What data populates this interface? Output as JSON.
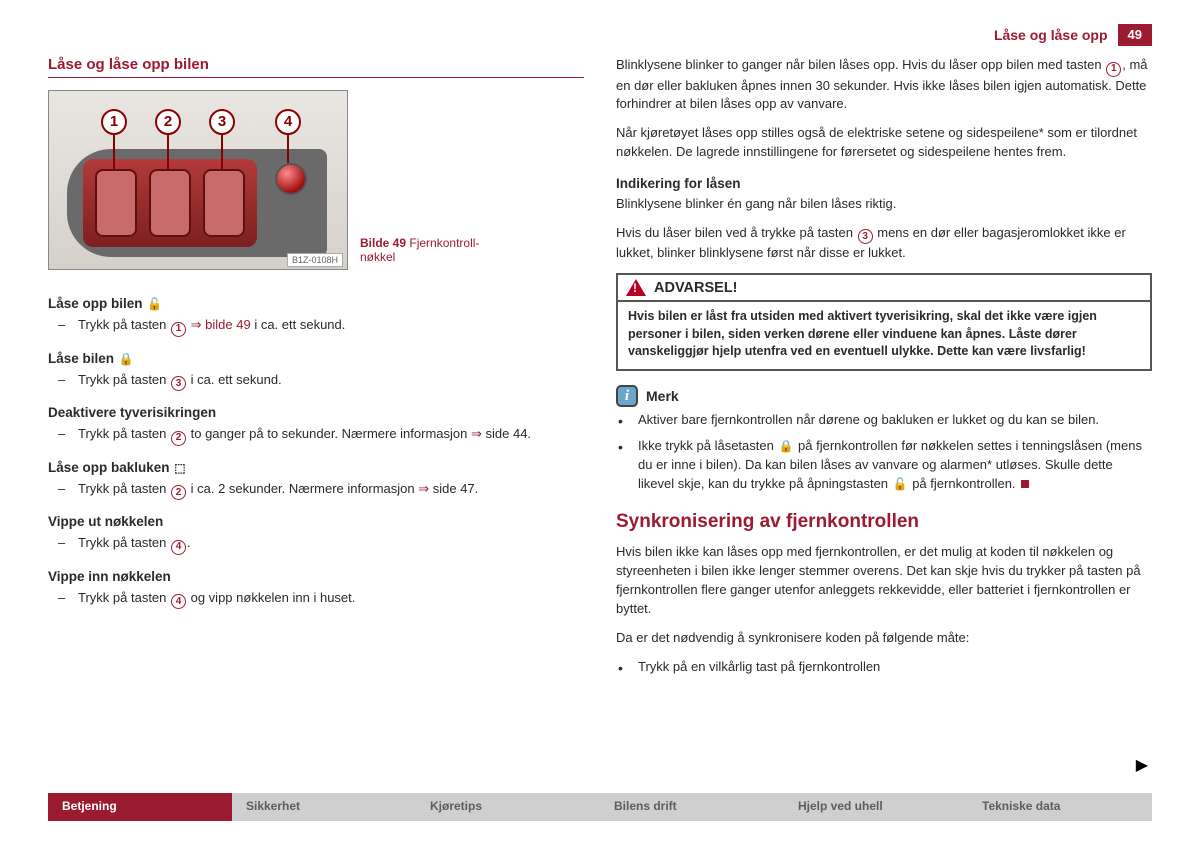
{
  "header": {
    "title": "Låse og låse opp",
    "page": "49"
  },
  "left": {
    "section": "Låse og låse opp bilen",
    "figure": {
      "id": "B1Z-0108H",
      "caption_prefix": "Bilde 49",
      "caption": "Fjernkontroll-nøkkel",
      "callouts": [
        "1",
        "2",
        "3",
        "4"
      ]
    },
    "blocks": [
      {
        "title": "Låse opp bilen",
        "icon": "🔓",
        "line_parts": [
          "Trykk på tasten ",
          {
            "n": "1"
          },
          " ",
          {
            "arr": "⇒"
          },
          " ",
          {
            "link": "bilde 49"
          },
          " i ca. ett sekund."
        ]
      },
      {
        "title": "Låse bilen",
        "icon": "🔒",
        "line_parts": [
          "Trykk på tasten ",
          {
            "n": "3"
          },
          " i ca. ett sekund."
        ]
      },
      {
        "title": "Deaktivere tyverisikringen",
        "icon": "",
        "line_parts": [
          "Trykk på tasten ",
          {
            "n": "2"
          },
          " to ganger på to sekunder. Nærmere informasjon ",
          {
            "arr": "⇒"
          },
          " side 44."
        ]
      },
      {
        "title": "Låse opp bakluken",
        "icon": "⬚",
        "line_parts": [
          "Trykk på tasten ",
          {
            "n": "2"
          },
          " i ca. 2 sekunder. Nærmere informasjon ",
          {
            "arr": "⇒"
          },
          " side 47."
        ]
      },
      {
        "title": "Vippe ut nøkkelen",
        "icon": "",
        "line_parts": [
          "Trykk på tasten ",
          {
            "n": "4"
          },
          "."
        ]
      },
      {
        "title": "Vippe inn nøkkelen",
        "icon": "",
        "line_parts": [
          "Trykk på tasten ",
          {
            "n": "4"
          },
          " og vipp nøkkelen inn i huset."
        ]
      }
    ]
  },
  "right": {
    "p1_parts": [
      "Blinklysene blinker to ganger når bilen låses opp. Hvis du låser opp bilen med tasten ",
      {
        "n": "1"
      },
      ", må en dør eller bakluken åpnes innen 30 sekunder. Hvis ikke låses bilen igjen automatisk. Dette forhindrer at bilen låses opp av vanvare."
    ],
    "p2": "Når kjøretøyet låses opp stilles også de elektriske setene og sidespeilene* som er tilordnet nøkkelen. De lagrede innstillingene for førersetet og sidespeilene hentes frem.",
    "sub1": "Indikering for låsen",
    "p3": "Blinklysene blinker én gang når bilen låses riktig.",
    "p4_parts": [
      "Hvis du låser bilen ved å trykke på tasten ",
      {
        "n": "3"
      },
      " mens en dør eller bagasjeromlokket ikke er lukket, blinker blinklysene først når disse er lukket."
    ],
    "warning": {
      "title": "ADVARSEL!",
      "body": "Hvis bilen er låst fra utsiden med aktivert tyverisikring, skal det ikke være igjen personer i bilen, siden verken dørene eller vinduene kan åpnes. Låste dører vanskeliggjør hjelp utenfra ved en eventuell ulykke. Dette kan være livsfarlig!"
    },
    "note": {
      "title": "Merk",
      "b1": "Aktiver bare fjernkontrollen når dørene og bakluken er lukket og du kan se bilen.",
      "b2_parts": [
        "Ikke trykk på låsetasten ",
        {
          "icon": "🔒"
        },
        " på fjernkontrollen før nøkkelen settes i tenningslåsen (mens du er inne i bilen). Da kan bilen låses av vanvare og alarmen* utløses. Skulle dette likevel skje, kan du trykke på åpningstasten ",
        {
          "icon": "🔓"
        },
        " på fjernkontrollen."
      ]
    },
    "section2": "Synkronisering av fjernkontrollen",
    "p5": "Hvis bilen ikke kan låses opp med fjernkontrollen, er det mulig at koden til nøkkelen og styreenheten i bilen ikke lenger stemmer overens. Det kan skje hvis du trykker på tasten på fjernkontrollen flere ganger utenfor anleggets rekkevidde, eller batteriet i fjernkontrollen er byttet.",
    "p6": "Da er det nødvendig å synkronisere koden på følgende måte:",
    "b3": "Trykk på en vilkårlig tast på fjernkontrollen"
  },
  "tabs": [
    "Betjening",
    "Sikkerhet",
    "Kjøretips",
    "Bilens drift",
    "Hjelp ved uhell",
    "Tekniske data"
  ],
  "active_tab": 0,
  "colors": {
    "brand": "#9b1b30"
  }
}
